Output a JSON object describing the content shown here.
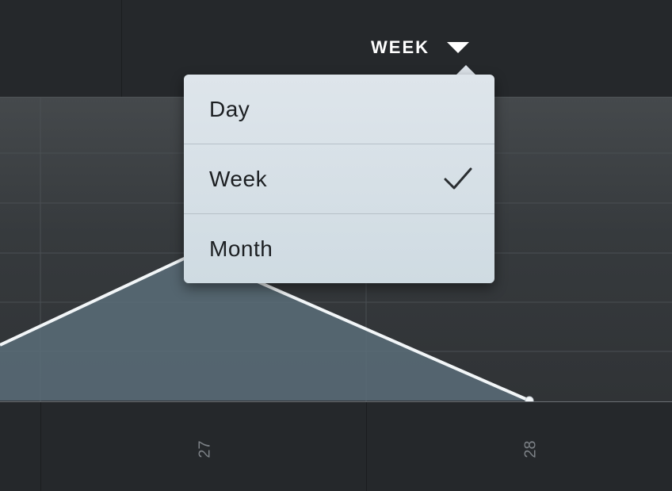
{
  "header": {
    "period_label": "WEEK",
    "caret_icon": "caret-down-icon"
  },
  "dropdown": {
    "items": [
      {
        "label": "Day",
        "selected": false
      },
      {
        "label": "Week",
        "selected": true
      },
      {
        "label": "Month",
        "selected": false
      }
    ],
    "check_icon": "checkmark-icon"
  },
  "chart_data": {
    "type": "area",
    "x_tick_labels": [
      "27",
      "28"
    ],
    "grid": true,
    "colors": {
      "line": "#f2f6f8",
      "fill": "#5b6d79",
      "point": "#f2f6f8"
    }
  }
}
